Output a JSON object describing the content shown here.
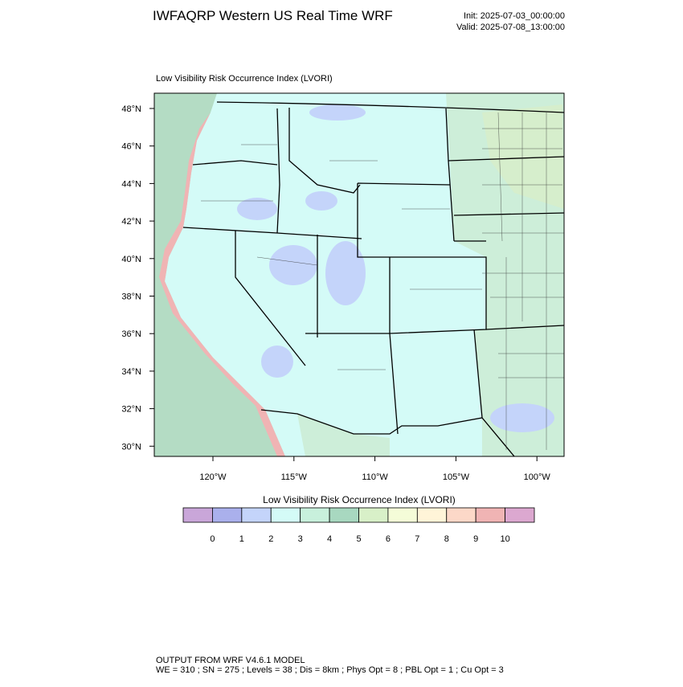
{
  "header": {
    "title": "IWFAQRP Western US Real Time WRF",
    "init": "Init: 2025-07-03_00:00:00",
    "valid": "Valid: 2025-07-08_13:00:00"
  },
  "map": {
    "subtitle": "Low Visibility Risk Occurrence Index   (LVORI)",
    "lat_labels": [
      "48°N",
      "46°N",
      "44°N",
      "42°N",
      "40°N",
      "38°N",
      "36°N",
      "34°N",
      "32°N",
      "30°N"
    ],
    "lon_labels": [
      "120°W",
      "115°W",
      "110°W",
      "105°W",
      "100°W"
    ]
  },
  "colorbar": {
    "title": "Low Visibility Risk Occurrence Index  (LVORI)",
    "colors": [
      "#c9a6d9",
      "#aab0ec",
      "#c4d4fa",
      "#d4fbf7",
      "#c8f0dc",
      "#a8d8c0",
      "#d8f0c8",
      "#f4fcd8",
      "#fff4d8",
      "#fcd8c8",
      "#f0b4b4",
      "#dca8d0"
    ],
    "ticks": [
      0,
      1,
      2,
      3,
      4,
      5,
      6,
      7,
      8,
      9,
      10
    ]
  },
  "footer": {
    "line1": "OUTPUT FROM WRF V4.6.1 MODEL",
    "line2": "WE = 310 ; SN = 275 ; Levels = 38 ; Dis = 8km ; Phys Opt = 8 ; PBL Opt = 1 ; Cu Opt = 3"
  }
}
